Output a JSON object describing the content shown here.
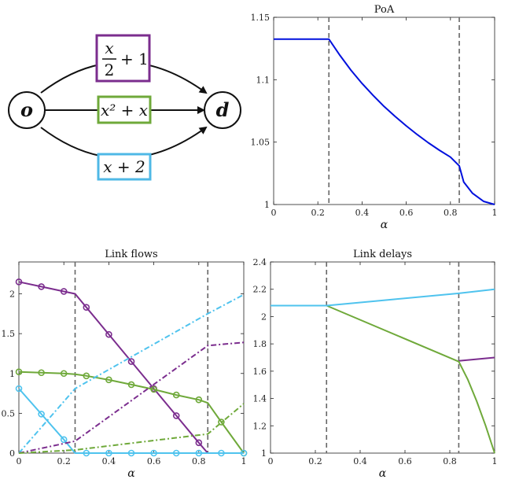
{
  "diagram": {
    "nodes": {
      "origin": "o",
      "destination": "d"
    },
    "edges": [
      {
        "label_num": "x",
        "label_den": "2",
        "label_rest": "+ 1",
        "color": "#7B2D8E"
      },
      {
        "label": "x² + x",
        "color": "#6FA93A"
      },
      {
        "label": "x + 2",
        "color": "#4FB8E6"
      }
    ]
  },
  "colors": {
    "purple": "#7B2D8E",
    "green": "#6FA93A",
    "cyan": "#4FC3EE",
    "blue": "#0010DD",
    "vline": "#666666"
  },
  "chart_data": [
    {
      "type": "line",
      "title": "PoA",
      "xlabel": "α",
      "xlim": [
        0,
        1
      ],
      "ylim": [
        1,
        1.15
      ],
      "xticks": [
        "0",
        "0.2",
        "0.4",
        "0.6",
        "0.8",
        "1"
      ],
      "yticks": [
        "1",
        "1.05",
        "1.1",
        "1.15"
      ],
      "vlines": [
        0.25,
        0.84
      ],
      "series": [
        {
          "x": [
            0,
            0.25,
            0.3,
            0.35,
            0.4,
            0.45,
            0.5,
            0.55,
            0.6,
            0.65,
            0.7,
            0.75,
            0.8,
            0.84,
            0.86,
            0.9,
            0.95,
            1.0
          ],
          "y": [
            1.1325,
            1.1325,
            1.1195,
            1.1075,
            1.097,
            1.0875,
            1.0785,
            1.0705,
            1.063,
            1.056,
            1.0495,
            1.0435,
            1.038,
            1.031,
            1.018,
            1.009,
            1.0025,
            1.0
          ]
        }
      ]
    },
    {
      "type": "line",
      "title": "Link flows",
      "xlabel": "α",
      "xlim": [
        0,
        1
      ],
      "ylim": [
        0,
        2.4
      ],
      "xticks": [
        "0",
        "0.2",
        "0.4",
        "0.6",
        "0.8",
        "1"
      ],
      "yticks": [
        "0",
        "0.5",
        "1",
        "1.5",
        "2"
      ],
      "vlines": [
        0.25,
        0.84
      ],
      "series": [
        {
          "style": "solid-marker",
          "color_key": "purple",
          "x": [
            0,
            0.1,
            0.2,
            0.25,
            0.3,
            0.4,
            0.5,
            0.6,
            0.7,
            0.8,
            0.84
          ],
          "y": [
            2.15,
            2.09,
            2.03,
            2.0,
            1.83,
            1.49,
            1.15,
            0.81,
            0.47,
            0.13,
            0.0
          ]
        },
        {
          "style": "solid-marker",
          "color_key": "green",
          "x": [
            0,
            0.1,
            0.2,
            0.25,
            0.3,
            0.4,
            0.5,
            0.6,
            0.7,
            0.8,
            0.84,
            0.9,
            1.0
          ],
          "y": [
            1.02,
            1.01,
            1.0,
            0.99,
            0.97,
            0.92,
            0.86,
            0.8,
            0.73,
            0.67,
            0.63,
            0.39,
            0.0
          ]
        },
        {
          "style": "solid-marker",
          "color_key": "cyan",
          "x": [
            0,
            0.1,
            0.2,
            0.25,
            0.3,
            0.4,
            0.5,
            0.6,
            0.7,
            0.8,
            0.9,
            1.0
          ],
          "y": [
            0.81,
            0.49,
            0.17,
            0.0,
            0,
            0,
            0,
            0,
            0,
            0,
            0,
            0
          ]
        },
        {
          "style": "dashdot",
          "color_key": "cyan",
          "x": [
            0,
            0.25,
            0.84,
            1.0
          ],
          "y": [
            0,
            0.81,
            1.75,
            1.99
          ]
        },
        {
          "style": "dashdot",
          "color_key": "purple",
          "x": [
            0,
            0.25,
            0.84,
            1.0
          ],
          "y": [
            0,
            0.15,
            1.35,
            1.39
          ]
        },
        {
          "style": "dashdot",
          "color_key": "green",
          "x": [
            0,
            0.25,
            0.84,
            1.0
          ],
          "y": [
            0,
            0.04,
            0.24,
            0.62
          ]
        }
      ]
    },
    {
      "type": "line",
      "title": "Link delays",
      "xlabel": "α",
      "xlim": [
        0,
        1
      ],
      "ylim": [
        1,
        2.4
      ],
      "xticks": [
        "0",
        "0.2",
        "0.4",
        "0.6",
        "0.8",
        "1"
      ],
      "yticks": [
        "1",
        "1.2",
        "1.4",
        "1.6",
        "1.8",
        "2",
        "2.2",
        "2.4"
      ],
      "vlines": [
        0.25,
        0.84
      ],
      "series": [
        {
          "color_key": "purple",
          "x": [
            0.84,
            1.0
          ],
          "y": [
            1.675,
            1.7
          ]
        },
        {
          "color_key": "green",
          "x": [
            0.25,
            0.84,
            0.88,
            0.92,
            0.96,
            1.0
          ],
          "y": [
            2.08,
            1.67,
            1.54,
            1.38,
            1.2,
            1.0
          ]
        },
        {
          "color_key": "cyan",
          "x": [
            0,
            0.25,
            0.84,
            1.0
          ],
          "y": [
            2.08,
            2.08,
            2.17,
            2.2
          ]
        }
      ]
    }
  ]
}
